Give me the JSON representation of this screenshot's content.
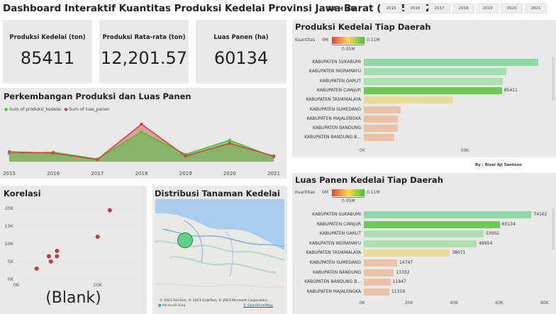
{
  "header": {
    "title": "Dashboard Interaktif Kuantitas Produksi Kedelai Provinsi Jawa Barat (2015-2021)",
    "tahun_label": "TAHUN",
    "years": [
      "2015",
      "2016",
      "2017",
      "2018",
      "2019",
      "2020",
      "2021"
    ]
  },
  "cards": [
    {
      "label": "Produksi Kedelai (ton)",
      "value": "85411"
    },
    {
      "label": "Produksi Rata-rata (ton)",
      "value": "12,201.57"
    },
    {
      "label": "Luas Panen (ha)",
      "value": "60134"
    }
  ],
  "line_panel": {
    "title": "Perkembangan Produksi dan Luas Panen",
    "legend": [
      "Sum of produksi_kedelai",
      "Sum of luas_panen"
    ],
    "colors": [
      "#3fc43f",
      "#d9403a"
    ]
  },
  "scatter_panel": {
    "title": "Korelasi",
    "blank": "(Blank)"
  },
  "map_panel": {
    "title": "Distribusi Tanaman Kedelai",
    "attribution": "© 2023 TomTom, © 2023 GrabTaxi, © 2023 Microsoft Corporation,",
    "osm": "© OpenStreetMap",
    "logo": "Microsoft Bing"
  },
  "bar_prod": {
    "title": "Produksi Kedelai Tiap Daerah",
    "legend_label": "Kuantitas",
    "legend_min": "0M",
    "legend_max": "0.11M",
    "legend_mid": "0.05M"
  },
  "bar_luas": {
    "title": "Luas Panen Kedelai Tiap Daerah",
    "legend_label": "Kuantitas",
    "legend_min": "0M",
    "legend_max": "0.11M",
    "legend_mid": "0.05M"
  },
  "author": "By : Rizal Aji Santoso",
  "chart_data": [
    {
      "type": "area",
      "title": "Perkembangan Produksi dan Luas Panen",
      "categories": [
        "2015",
        "2016",
        "2017",
        "2018",
        "2019",
        "2020",
        "2021"
      ],
      "series": [
        {
          "name": "Sum of produksi_kedelai",
          "values": [
            0.19,
            0.22,
            0.06,
            0.7,
            0.17,
            0.5,
            0.11
          ]
        },
        {
          "name": "Sum of luas_panen",
          "values": [
            0.23,
            0.2,
            0.05,
            0.88,
            0.13,
            0.43,
            0.13
          ]
        }
      ],
      "legend": "top-left"
    },
    {
      "type": "scatter",
      "title": "Korelasi",
      "x_ticks": [
        "0K",
        "20K"
      ],
      "y_ticks": [
        "0K",
        "5K",
        "10K",
        "15K",
        "20K"
      ],
      "xlim": [
        0,
        30000
      ],
      "ylim": [
        0,
        21000
      ],
      "points": [
        {
          "x": 5000,
          "y": 3000
        },
        {
          "x": 8500,
          "y": 5000
        },
        {
          "x": 8000,
          "y": 6500
        },
        {
          "x": 10000,
          "y": 6500
        },
        {
          "x": 10000,
          "y": 8000
        },
        {
          "x": 20000,
          "y": 12000
        },
        {
          "x": 23000,
          "y": 19500
        }
      ]
    },
    {
      "type": "bar",
      "title": "Produksi Kedelai Tiap Daerah",
      "categories": [
        "KABUPATEN SUKABUMI",
        "KABUPATEN INDRAMAYU",
        "KABUPATEN GARUT",
        "KABUPATEN CIANJUR",
        "KABUPATEN TASIKMALAYA",
        "KABUPATEN SUMEDANG",
        "KABUPATEN MAJALENGKA",
        "KABUPATEN BANDUNG",
        "KABUPATEN BANDUNG B..."
      ],
      "values": [
        108000,
        88000,
        86000,
        85411,
        55000,
        23000,
        21000,
        21000,
        19000
      ],
      "data_labels": [
        "",
        "",
        "",
        "85411",
        "",
        "",
        "",
        "",
        ""
      ],
      "colors": [
        "#8ed8a8",
        "#a6ddb0",
        "#aedfae",
        "#6ccb55",
        "#e8dc98",
        "#ecc2a6",
        "#ecc2a6",
        "#ecc2a6",
        "#ecc2a6"
      ],
      "x_ticks": [
        "0K",
        "50K",
        "100K"
      ],
      "xlim": [
        0,
        125000
      ]
    },
    {
      "type": "bar",
      "title": "Luas Panen Kedelai Tiap Daerah",
      "categories": [
        "KABUPATEN SUKABUMI",
        "KABUPATEN CIANJUR",
        "KABUPATEN GARUT",
        "KABUPATEN INDRAMAYU",
        "KABUPATEN TASIKMALAYA",
        "KABUPATEN SUMEDANG",
        "KABUPATEN BANDUNG",
        "KABUPATEN BANDUNG B...",
        "KABUPATEN MAJALENGKA"
      ],
      "values": [
        74162,
        60134,
        53002,
        49954,
        38071,
        14747,
        13332,
        11847,
        11310
      ],
      "data_labels": [
        "74162",
        "60134",
        "53002",
        "49954",
        "38071",
        "14747",
        "13332",
        "11847",
        "11310"
      ],
      "colors": [
        "#8ed8a8",
        "#6ccb55",
        "#aedfae",
        "#aedfae",
        "#e8dc98",
        "#ecc2a6",
        "#ecc2a6",
        "#ecc2a6",
        "#ecc2a6"
      ],
      "x_ticks": [
        "0K",
        "20K",
        "40K",
        "60K",
        "80K"
      ],
      "xlim": [
        0,
        80000
      ]
    }
  ]
}
